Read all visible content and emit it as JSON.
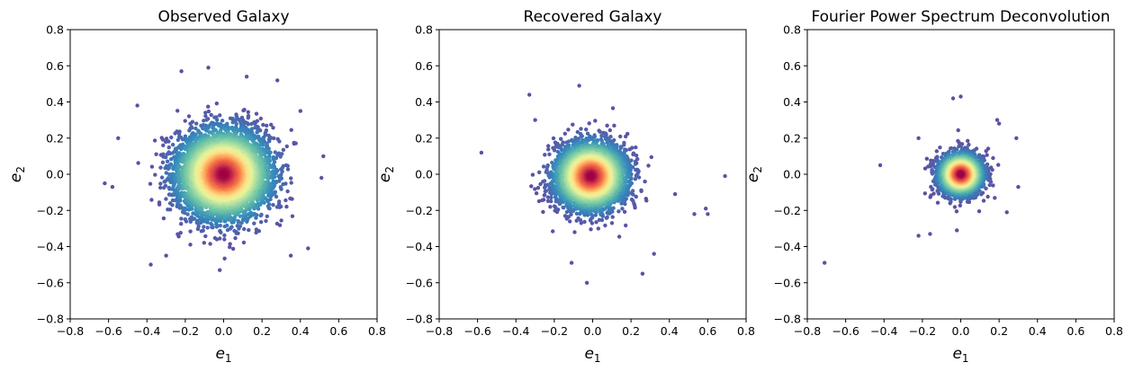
{
  "chart_data": [
    {
      "type": "scatter",
      "title": "Observed Galaxy",
      "xlabel": "e",
      "xlabel_sub": "1",
      "ylabel": "e",
      "ylabel_sub": "2",
      "xlim": [
        -0.8,
        0.8
      ],
      "ylim": [
        -0.8,
        0.8
      ],
      "xticks": [
        "−0.8",
        "−0.6",
        "−0.4",
        "−0.2",
        "0.0",
        "0.2",
        "0.4",
        "0.6",
        "0.8"
      ],
      "yticks": [
        "−0.8",
        "−0.6",
        "−0.4",
        "−0.2",
        "0.0",
        "0.2",
        "0.4",
        "0.6",
        "0.8"
      ],
      "distribution": {
        "center": [
          0.0,
          0.0
        ],
        "spread": 0.12,
        "n_points": 5200
      },
      "colormap": "Spectral_r (point density)",
      "outliers": [
        [
          -0.22,
          0.57
        ],
        [
          -0.08,
          0.59
        ],
        [
          0.12,
          0.54
        ],
        [
          0.28,
          0.52
        ],
        [
          -0.62,
          -0.05
        ],
        [
          -0.58,
          -0.07
        ],
        [
          0.52,
          0.1
        ],
        [
          0.51,
          -0.02
        ],
        [
          -0.38,
          -0.5
        ],
        [
          -0.02,
          -0.53
        ],
        [
          0.44,
          -0.41
        ],
        [
          -0.55,
          0.2
        ],
        [
          -0.45,
          0.38
        ],
        [
          0.4,
          0.35
        ],
        [
          0.35,
          -0.45
        ],
        [
          -0.3,
          -0.45
        ]
      ],
      "grid": false
    },
    {
      "type": "scatter",
      "title": "Recovered Galaxy",
      "xlabel": "e",
      "xlabel_sub": "1",
      "ylabel": "e",
      "ylabel_sub": "2",
      "xlim": [
        -0.8,
        0.8
      ],
      "ylim": [
        -0.8,
        0.8
      ],
      "xticks": [
        "−0.8",
        "−0.6",
        "−0.4",
        "−0.2",
        "0.0",
        "0.2",
        "0.4",
        "0.6",
        "0.8"
      ],
      "yticks": [
        "−0.8",
        "−0.6",
        "−0.4",
        "−0.2",
        "0.0",
        "0.2",
        "0.4",
        "0.6",
        "0.8"
      ],
      "distribution": {
        "center": [
          -0.01,
          -0.01
        ],
        "spread": 0.09,
        "n_points": 4200
      },
      "colormap": "Spectral_r (point density)",
      "outliers": [
        [
          -0.58,
          0.12
        ],
        [
          -0.33,
          0.44
        ],
        [
          -0.07,
          0.49
        ],
        [
          0.69,
          -0.01
        ],
        [
          0.59,
          -0.19
        ],
        [
          0.6,
          -0.22
        ],
        [
          0.53,
          -0.22
        ],
        [
          -0.11,
          -0.49
        ],
        [
          -0.03,
          -0.6
        ],
        [
          0.26,
          -0.55
        ],
        [
          0.32,
          -0.44
        ],
        [
          0.43,
          -0.11
        ],
        [
          -0.3,
          0.3
        ]
      ],
      "grid": false
    },
    {
      "type": "scatter",
      "title": "Fourier Power Spectrum Deconvolution",
      "xlabel": "e",
      "xlabel_sub": "1",
      "ylabel": "e",
      "ylabel_sub": "2",
      "xlim": [
        -0.8,
        0.8
      ],
      "ylim": [
        -0.8,
        0.8
      ],
      "xticks": [
        "−0.8",
        "−0.6",
        "−0.4",
        "−0.2",
        "0.0",
        "0.2",
        "0.4",
        "0.6",
        "0.8"
      ],
      "yticks": [
        "−0.8",
        "−0.6",
        "−0.4",
        "−0.2",
        "0.0",
        "0.2",
        "0.4",
        "0.6",
        "0.8"
      ],
      "distribution": {
        "center": [
          0.0,
          0.0
        ],
        "spread": 0.055,
        "n_points": 3200
      },
      "colormap": "Spectral_r (point density)",
      "outliers": [
        [
          -0.71,
          -0.49
        ],
        [
          -0.42,
          0.05
        ],
        [
          -0.22,
          -0.34
        ],
        [
          -0.16,
          -0.33
        ],
        [
          -0.04,
          0.42
        ],
        [
          0.0,
          0.43
        ],
        [
          0.19,
          0.3
        ],
        [
          0.2,
          0.28
        ],
        [
          0.29,
          0.2
        ],
        [
          0.3,
          -0.07
        ],
        [
          -0.22,
          0.2
        ],
        [
          -0.02,
          -0.31
        ],
        [
          0.24,
          -0.21
        ]
      ],
      "grid": false
    }
  ]
}
